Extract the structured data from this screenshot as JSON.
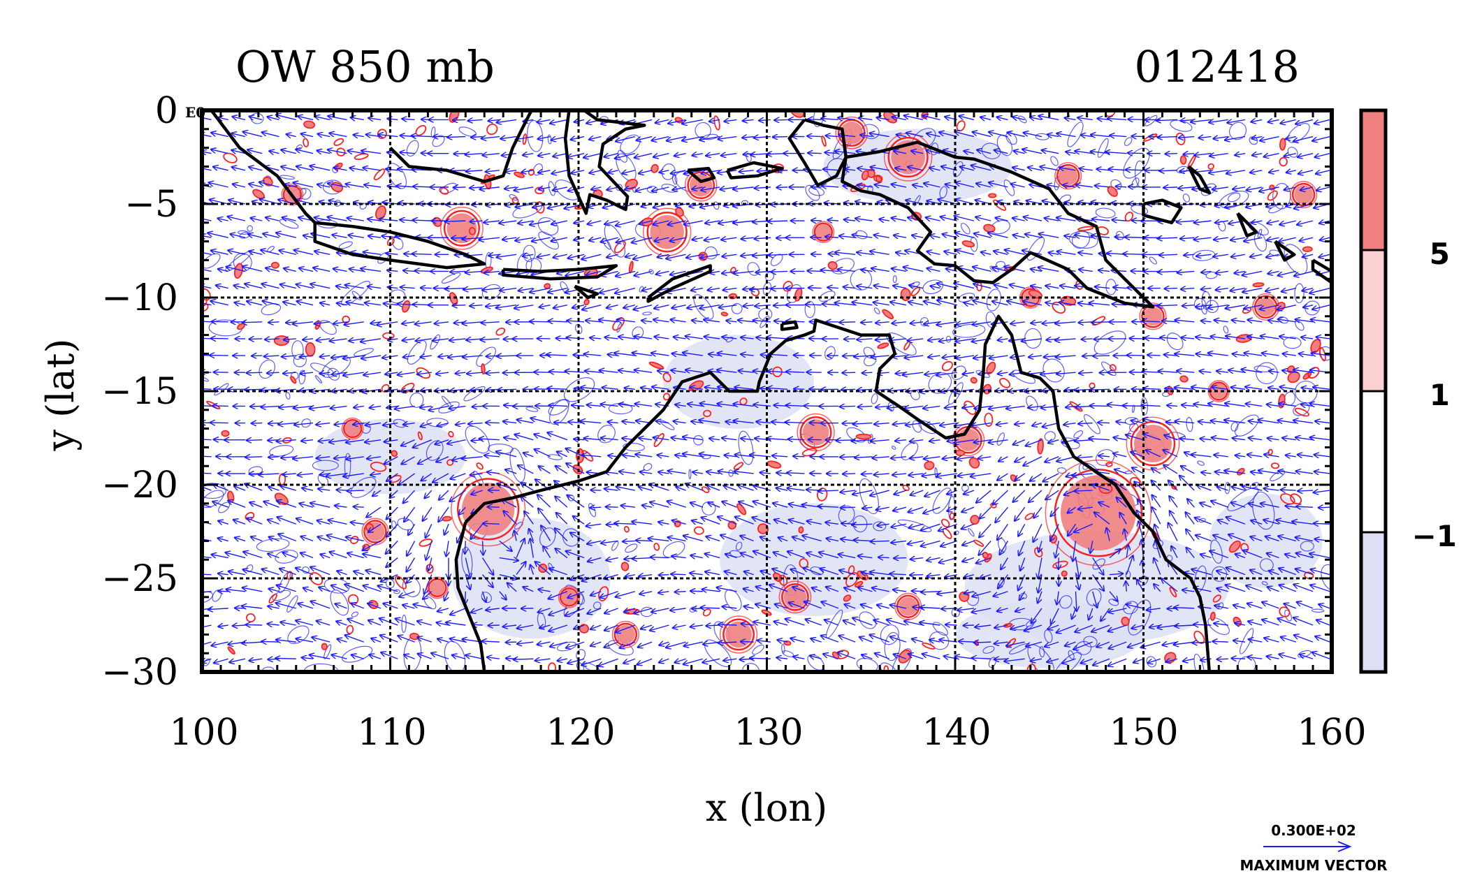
{
  "title_left": "OW 850 mb",
  "title_right": "012418",
  "corner_label": "E0",
  "xlabel": "x (lon)",
  "ylabel": "y (lat)",
  "x_ticks": [
    "100",
    "110",
    "120",
    "130",
    "140",
    "150",
    "160"
  ],
  "y_ticks": [
    "0",
    "−5",
    "−10",
    "−15",
    "−20",
    "−25",
    "−30"
  ],
  "colorbar": {
    "labels": [
      "5",
      "1",
      "−1"
    ],
    "colors": [
      "#f08080",
      "#fbd0d0",
      "#ffffff",
      "#dde0f5"
    ]
  },
  "vector_key": {
    "value": "0.300E+02",
    "label": "MAXIMUM VECTOR"
  },
  "colors": {
    "vectors": "#1a1aff",
    "coast": "#000000",
    "positive_contour": "#ff2020",
    "negative_shade": "#dde0f5"
  },
  "chart_data": {
    "type": "heatmap",
    "title": "OW 850 mb",
    "subtitle": "012418",
    "xlabel": "x (lon)",
    "ylabel": "y (lat)",
    "xlim": [
      100,
      160
    ],
    "ylim": [
      -30,
      0
    ],
    "x_ticks": [
      100,
      110,
      120,
      130,
      140,
      150,
      160
    ],
    "y_ticks": [
      0,
      -5,
      -10,
      -15,
      -20,
      -25,
      -30
    ],
    "grid": true,
    "contour_levels": [
      -1,
      1,
      5
    ],
    "vector_max": 30,
    "coastlines": [
      [
        [
          100.5,
          0
        ],
        [
          102,
          -2
        ],
        [
          104,
          -3.5
        ],
        [
          105.5,
          -5.5
        ],
        [
          106,
          -6
        ]
      ],
      [
        [
          106,
          -6
        ],
        [
          108,
          -6.2
        ],
        [
          110,
          -6.5
        ],
        [
          112,
          -7
        ],
        [
          114,
          -7.7
        ],
        [
          115,
          -8.2
        ],
        [
          113,
          -8.4
        ],
        [
          110,
          -8
        ],
        [
          108,
          -7.7
        ],
        [
          106,
          -7
        ],
        [
          106,
          -6
        ]
      ],
      [
        [
          116,
          -8.5
        ],
        [
          118,
          -8.6
        ],
        [
          120,
          -8.5
        ],
        [
          122,
          -8.3
        ],
        [
          121,
          -8.9
        ],
        [
          118.5,
          -9
        ],
        [
          116,
          -8.8
        ],
        [
          116,
          -8.5
        ]
      ],
      [
        [
          119.8,
          -9.4
        ],
        [
          121,
          -9.8
        ],
        [
          120.5,
          -10
        ],
        [
          119.8,
          -9.4
        ]
      ],
      [
        [
          123.7,
          -10
        ],
        [
          125,
          -9
        ],
        [
          127,
          -8.3
        ],
        [
          127,
          -8.6
        ],
        [
          125,
          -9.5
        ],
        [
          123.7,
          -10.2
        ],
        [
          123.7,
          -10
        ]
      ],
      [
        [
          110,
          -2
        ],
        [
          111,
          -3
        ],
        [
          113,
          -3.2
        ],
        [
          115,
          -3.8
        ],
        [
          116,
          -3.5
        ],
        [
          116.5,
          -2
        ],
        [
          117,
          -1
        ],
        [
          117.5,
          0
        ]
      ],
      [
        [
          119.5,
          0
        ],
        [
          119.3,
          -1.5
        ],
        [
          119.5,
          -3.5
        ],
        [
          120.4,
          -5.5
        ],
        [
          120.6,
          -4.5
        ],
        [
          121.5,
          -4.8
        ],
        [
          122.5,
          -5.3
        ],
        [
          122.6,
          -4.6
        ],
        [
          121.1,
          -3
        ],
        [
          121.3,
          -1.8
        ],
        [
          122.5,
          -1
        ],
        [
          123.5,
          -0.8
        ],
        [
          121,
          -0.5
        ],
        [
          120.3,
          0
        ]
      ],
      [
        [
          125.8,
          -3.2
        ],
        [
          126.9,
          -3.1
        ],
        [
          127.2,
          -3.6
        ],
        [
          126.5,
          -3.8
        ],
        [
          125.8,
          -3.2
        ]
      ],
      [
        [
          127.9,
          -3.2
        ],
        [
          129.3,
          -2.8
        ],
        [
          130.8,
          -3.1
        ],
        [
          129.5,
          -3.5
        ],
        [
          128.1,
          -3.6
        ],
        [
          127.9,
          -3.2
        ]
      ],
      [
        [
          132,
          -0.5
        ],
        [
          133,
          -0.8
        ],
        [
          134,
          -1
        ],
        [
          134.2,
          -2.5
        ],
        [
          133.7,
          -3.5
        ],
        [
          132.7,
          -4
        ],
        [
          132,
          -2.8
        ],
        [
          131.2,
          -1.5
        ],
        [
          132,
          -0.5
        ]
      ],
      [
        [
          134.2,
          -2.5
        ],
        [
          136,
          -2.2
        ],
        [
          138,
          -1.7
        ],
        [
          140,
          -2.5
        ],
        [
          141,
          -2.6
        ],
        [
          143,
          -3.3
        ],
        [
          145,
          -4.2
        ],
        [
          146,
          -5.5
        ],
        [
          147.5,
          -6.2
        ],
        [
          148,
          -8
        ],
        [
          149,
          -9
        ],
        [
          150,
          -10
        ],
        [
          150.5,
          -10.5
        ],
        [
          149,
          -10.3
        ],
        [
          147,
          -9.5
        ],
        [
          146,
          -8.5
        ],
        [
          144,
          -7.6
        ],
        [
          143,
          -8.5
        ],
        [
          142,
          -9.2
        ],
        [
          141,
          -9.1
        ],
        [
          140,
          -8.3
        ],
        [
          138.9,
          -8.2
        ],
        [
          138,
          -7.5
        ],
        [
          138.7,
          -6.5
        ],
        [
          137.5,
          -5.2
        ],
        [
          136,
          -4.5
        ],
        [
          135,
          -4.3
        ],
        [
          134,
          -3.8
        ],
        [
          134.2,
          -2.5
        ]
      ],
      [
        [
          150,
          -5
        ],
        [
          151,
          -4.8
        ],
        [
          152,
          -5.2
        ],
        [
          151.5,
          -6
        ],
        [
          150,
          -5.6
        ],
        [
          150,
          -5
        ]
      ],
      [
        [
          152.4,
          -3
        ],
        [
          153,
          -3.5
        ],
        [
          153.5,
          -4.4
        ],
        [
          153,
          -4.2
        ],
        [
          152.4,
          -3
        ]
      ],
      [
        [
          155,
          -5.5
        ],
        [
          156,
          -6.5
        ],
        [
          155.5,
          -6.7
        ],
        [
          155,
          -5.5
        ]
      ],
      [
        [
          157,
          -7
        ],
        [
          158,
          -7.7
        ],
        [
          157.5,
          -8
        ],
        [
          157,
          -7
        ]
      ],
      [
        [
          159,
          -8
        ],
        [
          160,
          -8.6
        ],
        [
          160,
          -9.2
        ],
        [
          159,
          -8.5
        ],
        [
          159,
          -8
        ]
      ],
      [
        [
          114,
          -22
        ],
        [
          115,
          -21
        ],
        [
          116.5,
          -20.7
        ],
        [
          118,
          -20.3
        ],
        [
          120,
          -19.8
        ],
        [
          121.5,
          -19.3
        ],
        [
          122.5,
          -18
        ],
        [
          123.5,
          -17
        ],
        [
          124.5,
          -16
        ],
        [
          125.5,
          -14.5
        ],
        [
          127,
          -14
        ],
        [
          128,
          -15
        ],
        [
          129.5,
          -15
        ],
        [
          129.6,
          -14.5
        ],
        [
          130.2,
          -13
        ],
        [
          131,
          -12.3
        ],
        [
          132,
          -12
        ],
        [
          132.5,
          -11.8
        ],
        [
          132.6,
          -11.2
        ],
        [
          133.5,
          -11.5
        ],
        [
          135,
          -12
        ],
        [
          136.5,
          -12
        ],
        [
          136.8,
          -13
        ],
        [
          136,
          -13.8
        ],
        [
          135.8,
          -15
        ],
        [
          137,
          -15.8
        ],
        [
          138,
          -16.5
        ],
        [
          139.5,
          -17.5
        ],
        [
          140.5,
          -17.3
        ],
        [
          141.3,
          -16
        ],
        [
          141.5,
          -14
        ],
        [
          141.6,
          -12.5
        ],
        [
          142.3,
          -11
        ],
        [
          143,
          -12
        ],
        [
          143.5,
          -14
        ],
        [
          144.5,
          -14.3
        ],
        [
          145.2,
          -15
        ],
        [
          145.5,
          -17
        ],
        [
          146.3,
          -18.5
        ],
        [
          148.5,
          -20
        ],
        [
          149.5,
          -21.5
        ],
        [
          150.5,
          -22.5
        ],
        [
          151.2,
          -24
        ],
        [
          152.5,
          -25
        ],
        [
          153,
          -26
        ],
        [
          153.3,
          -27.5
        ],
        [
          153.5,
          -30
        ]
      ],
      [
        [
          114,
          -22
        ],
        [
          113.5,
          -24
        ],
        [
          113.6,
          -25.5
        ],
        [
          114.2,
          -27
        ],
        [
          114.8,
          -28.5
        ],
        [
          115,
          -30
        ]
      ],
      [
        [
          130.8,
          -11.4
        ],
        [
          131.5,
          -11.3
        ],
        [
          131.6,
          -11.6
        ],
        [
          130.8,
          -11.7
        ],
        [
          130.8,
          -11.4
        ]
      ]
    ],
    "positive_patches": [
      [
        115.2,
        -21.3,
        1.4
      ],
      [
        147.6,
        -21.5,
        2.0
      ],
      [
        124.7,
        -6.5,
        0.9
      ],
      [
        113.8,
        -6.3,
        0.8
      ],
      [
        132.6,
        -17.2,
        0.7
      ],
      [
        140.7,
        -17.6,
        0.6
      ],
      [
        150.5,
        -17.8,
        1.0
      ],
      [
        137.5,
        -2.5,
        0.9
      ],
      [
        134.5,
        -1.2,
        0.6
      ],
      [
        126.5,
        -4.0,
        0.6
      ],
      [
        104.8,
        -4.5,
        0.4
      ],
      [
        109.2,
        -22.5,
        0.5
      ],
      [
        112.5,
        -25.5,
        0.4
      ],
      [
        128.5,
        -28.0,
        0.7
      ],
      [
        131.5,
        -26.0,
        0.6
      ],
      [
        156.5,
        -10.5,
        0.5
      ],
      [
        158.5,
        -4.5,
        0.5
      ],
      [
        146.0,
        -3.5,
        0.5
      ],
      [
        137.5,
        -26.5,
        0.5
      ],
      [
        119.5,
        -26.0,
        0.4
      ],
      [
        122.5,
        -28.0,
        0.5
      ],
      [
        133.0,
        -6.5,
        0.4
      ],
      [
        150.5,
        -11.0,
        0.5
      ],
      [
        144.0,
        -10.0,
        0.4
      ],
      [
        154.0,
        -15.0,
        0.4
      ],
      [
        108.0,
        -17.0,
        0.4
      ]
    ],
    "negative_patches": [
      [
        117.5,
        -25.0,
        4.2,
        3.2
      ],
      [
        132.5,
        -24.0,
        5.0,
        3.0
      ],
      [
        147.5,
        -25.5,
        7.0,
        3.0
      ],
      [
        128.5,
        -14.5,
        4.0,
        2.5
      ],
      [
        138.0,
        -3.0,
        5.0,
        2.0
      ],
      [
        156.5,
        -23.0,
        3.0,
        2.5
      ],
      [
        110.0,
        -18.5,
        4.0,
        2.0
      ],
      [
        145.0,
        -28.0,
        5.0,
        1.8
      ]
    ]
  }
}
